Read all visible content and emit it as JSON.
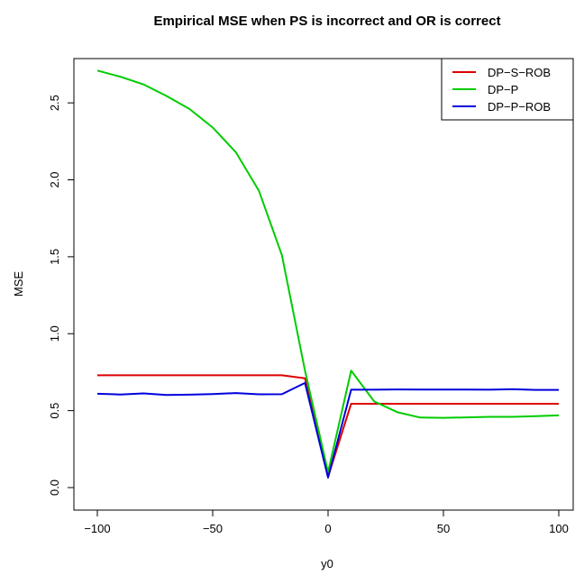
{
  "chart_data": {
    "type": "line",
    "title": "Empirical MSE when PS is incorrect and OR is correct",
    "xlabel": "y0",
    "ylabel": "MSE",
    "xlim": [
      -100,
      100
    ],
    "ylim": [
      0,
      2.7
    ],
    "xticks": [
      -100,
      -50,
      0,
      50,
      100
    ],
    "xtick_labels": [
      "−100",
      "−50",
      "0",
      "50",
      "100"
    ],
    "yticks": [
      0.0,
      0.5,
      1.0,
      1.5,
      2.0,
      2.5
    ],
    "ytick_labels": [
      "0.0",
      "0.5",
      "1.0",
      "1.5",
      "2.0",
      "2.5"
    ],
    "grid": false,
    "legend_position": "top-right",
    "x": [
      -100,
      -90,
      -80,
      -70,
      -60,
      -50,
      -40,
      -30,
      -20,
      -10,
      0,
      10,
      20,
      30,
      40,
      50,
      60,
      70,
      80,
      90,
      100
    ],
    "series": [
      {
        "name": "DP−S−ROB",
        "color": "#dd0000",
        "values": [
          0.73,
          0.73,
          0.73,
          0.73,
          0.73,
          0.73,
          0.73,
          0.73,
          0.73,
          0.71,
          0.07,
          0.545,
          0.545,
          0.545,
          0.545,
          0.545,
          0.545,
          0.545,
          0.545,
          0.545,
          0.545
        ]
      },
      {
        "name": "DP−P",
        "color": "#00cc00",
        "values": [
          2.71,
          2.67,
          2.62,
          2.545,
          2.46,
          2.34,
          2.18,
          1.93,
          1.51,
          0.76,
          0.1,
          0.76,
          0.56,
          0.49,
          0.455,
          0.453,
          0.456,
          0.46,
          0.46,
          0.464,
          0.469
        ]
      },
      {
        "name": "DP−P−ROB",
        "color": "#0000dd",
        "values": [
          0.61,
          0.605,
          0.612,
          0.602,
          0.604,
          0.608,
          0.614,
          0.606,
          0.607,
          0.68,
          0.065,
          0.636,
          0.636,
          0.638,
          0.637,
          0.637,
          0.637,
          0.636,
          0.639,
          0.635,
          0.635
        ]
      }
    ]
  }
}
